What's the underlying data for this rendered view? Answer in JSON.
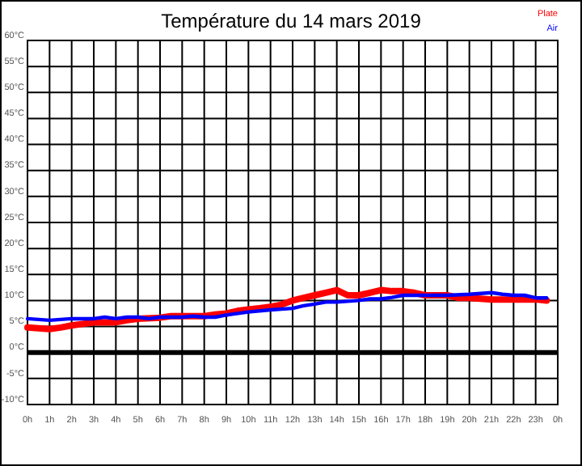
{
  "chart_data": {
    "type": "line",
    "title": "Température du 14 mars 2019",
    "series": [
      {
        "name": "Plate",
        "color": "#ff0000",
        "x": [
          "2019-03-14T00:00",
          "2019-03-14T01:00",
          "2019-03-14T01:30",
          "2019-03-14T02:00",
          "2019-03-14T02:30",
          "2019-03-14T03:00",
          "2019-03-14T04:00",
          "2019-03-14T04:30",
          "2019-03-14T05:00",
          "2019-03-14T06:00",
          "2019-03-14T06:30",
          "2019-03-14T07:00",
          "2019-03-14T08:00",
          "2019-03-14T08:30",
          "2019-03-14T09:00",
          "2019-03-14T09:30",
          "2019-03-14T10:00",
          "2019-03-14T10:30",
          "2019-03-14T11:00",
          "2019-03-14T11:30",
          "2019-03-14T12:00",
          "2019-03-14T12:30",
          "2019-03-14T13:00",
          "2019-03-14T13:30",
          "2019-03-14T14:00",
          "2019-03-14T14:30",
          "2019-03-14T15:00",
          "2019-03-14T15:30",
          "2019-03-14T16:00",
          "2019-03-14T16:30",
          "2019-03-14T17:00",
          "2019-03-14T17:30",
          "2019-03-14T18:00",
          "2019-03-14T19:00",
          "2019-03-14T19:30",
          "2019-03-14T20:00",
          "2019-03-14T21:00",
          "2019-03-14T22:00",
          "2019-03-14T23:00",
          "2019-03-14T23:30"
        ],
        "values": [
          4.8,
          4.5,
          4.8,
          5.2,
          5.5,
          5.8,
          5.8,
          6.2,
          6.5,
          6.7,
          7,
          7,
          7,
          7.3,
          7.5,
          8,
          8.3,
          8.5,
          8.8,
          9.2,
          10,
          10.5,
          11,
          11.5,
          12,
          11,
          11,
          11.5,
          12,
          11.8,
          11.8,
          11.5,
          11,
          11,
          10.5,
          10.5,
          10.2,
          10.2,
          10.2,
          10
        ]
      },
      {
        "name": "Air",
        "color": "#0000ff",
        "x": [
          "2019-03-14T00:00",
          "2019-03-14T01:00",
          "2019-03-14T02:00",
          "2019-03-14T03:00",
          "2019-03-14T03:30",
          "2019-03-14T04:00",
          "2019-03-14T04:30",
          "2019-03-14T05:00",
          "2019-03-14T05:30",
          "2019-03-14T06:00",
          "2019-03-14T07:00",
          "2019-03-14T07:30",
          "2019-03-14T08:00",
          "2019-03-14T08:30",
          "2019-03-14T09:00",
          "2019-03-14T10:00",
          "2019-03-14T11:00",
          "2019-03-14T12:00",
          "2019-03-14T12:30",
          "2019-03-14T13:00",
          "2019-03-14T13:30",
          "2019-03-14T14:00",
          "2019-03-14T15:00",
          "2019-03-14T15:30",
          "2019-03-14T16:00",
          "2019-03-14T16:30",
          "2019-03-14T17:00",
          "2019-03-14T18:00",
          "2019-03-14T19:00",
          "2019-03-14T20:00",
          "2019-03-14T21:00",
          "2019-03-14T21:30",
          "2019-03-14T22:00",
          "2019-03-14T22:30",
          "2019-03-14T23:00",
          "2019-03-14T23:30"
        ],
        "values": [
          6.5,
          6.2,
          6.5,
          6.5,
          6.8,
          6.5,
          6.8,
          6.8,
          6.5,
          6.8,
          6.8,
          7,
          6.8,
          6.8,
          7.2,
          7.8,
          8.2,
          8.5,
          9,
          9.3,
          9.7,
          9.7,
          10,
          10.3,
          10.3,
          10.6,
          11,
          11,
          11,
          11.2,
          11.5,
          11.2,
          11,
          11,
          10.5,
          10.5
        ]
      }
    ],
    "xlim": [
      "2019-03-14T00:00",
      "2019-03-15T00:00"
    ],
    "xticks": [
      {
        "value": "2019-03-14T00:00",
        "label": "0h"
      },
      {
        "value": "2019-03-14T01:00",
        "label": "1h"
      },
      {
        "value": "2019-03-14T02:00",
        "label": "2h"
      },
      {
        "value": "2019-03-14T03:00",
        "label": "3h"
      },
      {
        "value": "2019-03-14T04:00",
        "label": "4h"
      },
      {
        "value": "2019-03-14T05:00",
        "label": "5h"
      },
      {
        "value": "2019-03-14T06:00",
        "label": "6h"
      },
      {
        "value": "2019-03-14T07:00",
        "label": "7h"
      },
      {
        "value": "2019-03-14T08:00",
        "label": "8h"
      },
      {
        "value": "2019-03-14T09:00",
        "label": "9h"
      },
      {
        "value": "2019-03-14T10:00",
        "label": "10h"
      },
      {
        "value": "2019-03-14T11:00",
        "label": "11h"
      },
      {
        "value": "2019-03-14T12:00",
        "label": "12h"
      },
      {
        "value": "2019-03-14T13:00",
        "label": "13h"
      },
      {
        "value": "2019-03-14T14:00",
        "label": "14h"
      },
      {
        "value": "2019-03-14T15:00",
        "label": "15h"
      },
      {
        "value": "2019-03-14T16:00",
        "label": "16h"
      },
      {
        "value": "2019-03-14T17:00",
        "label": "17h"
      },
      {
        "value": "2019-03-14T18:00",
        "label": "18h"
      },
      {
        "value": "2019-03-14T19:00",
        "label": "19h"
      },
      {
        "value": "2019-03-14T20:00",
        "label": "20h"
      },
      {
        "value": "2019-03-14T21:00",
        "label": "21h"
      },
      {
        "value": "2019-03-14T22:00",
        "label": "22h"
      },
      {
        "value": "2019-03-14T23:00",
        "label": "23h"
      },
      {
        "value": "2019-03-15T00:00",
        "label": "0h"
      }
    ],
    "ylim": [
      -10,
      60
    ],
    "yticks": [
      {
        "value": -10,
        "label": "-10°C"
      },
      {
        "value": -5,
        "label": "-5°C"
      },
      {
        "value": 0,
        "label": "0°C"
      },
      {
        "value": 5,
        "label": "5°C"
      },
      {
        "value": 10,
        "label": "10°C"
      },
      {
        "value": 15,
        "label": "15°C"
      },
      {
        "value": 20,
        "label": "20°C"
      },
      {
        "value": 25,
        "label": "25°C"
      },
      {
        "value": 30,
        "label": "30°C"
      },
      {
        "value": 35,
        "label": "35°C"
      },
      {
        "value": 40,
        "label": "40°C"
      },
      {
        "value": 45,
        "label": "45°C"
      },
      {
        "value": 50,
        "label": "50°C"
      },
      {
        "value": 55,
        "label": "55°C"
      },
      {
        "value": 60,
        "label": "60°C"
      }
    ],
    "grid": true,
    "legend": "top right",
    "line_style": "solid",
    "ref_lines": [
      {
        "axis": "y",
        "value": 0,
        "color": "#000000"
      }
    ]
  }
}
